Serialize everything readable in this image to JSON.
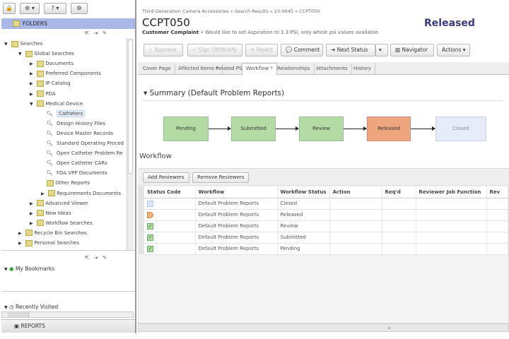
{
  "left": {
    "toolbar": [
      {
        "icon": "lock-icon",
        "label": "🔒"
      },
      {
        "icon": "gear-icon",
        "label": "⚙ ▾"
      },
      {
        "icon": "help-icon",
        "label": "? ▾"
      },
      {
        "icon": "settings-icon",
        "label": "⚙"
      }
    ],
    "folders_label": "FOLDERS",
    "tree": [
      {
        "label": "Searches",
        "level": 0,
        "type": "folder",
        "expanded": true
      },
      {
        "label": "Global Searches",
        "level": 1,
        "type": "folder",
        "expanded": true
      },
      {
        "label": "Documents",
        "level": 2,
        "type": "folder",
        "expanded": false
      },
      {
        "label": "Preferred Components",
        "level": 2,
        "type": "folder",
        "expanded": false
      },
      {
        "label": "IP Catalog",
        "level": 2,
        "type": "folder",
        "expanded": false
      },
      {
        "label": "PDA",
        "level": 2,
        "type": "folder",
        "expanded": false
      },
      {
        "label": "Medical Device",
        "level": 2,
        "type": "folder",
        "expanded": true
      },
      {
        "label": "Catheters",
        "level": 3,
        "type": "search",
        "selected": true
      },
      {
        "label": "Design History Files",
        "level": 3,
        "type": "search"
      },
      {
        "label": "Device Master Records",
        "level": 3,
        "type": "search"
      },
      {
        "label": "Standard Operating Proced",
        "level": 3,
        "type": "search"
      },
      {
        "label": "Open Catheter Problem Re",
        "level": 3,
        "type": "search"
      },
      {
        "label": "Open Catheter CARs",
        "level": 3,
        "type": "search"
      },
      {
        "label": "FDA VPP Documents",
        "level": 3,
        "type": "search"
      },
      {
        "label": "Other Reports",
        "level": 3,
        "type": "folder-leaf"
      },
      {
        "label": "Requirements Documents",
        "level": 3,
        "type": "folder",
        "expanded": false
      },
      {
        "label": "Advanced Viewer",
        "level": 2,
        "type": "folder",
        "expanded": false
      },
      {
        "label": "New Ideas",
        "level": 2,
        "type": "folder",
        "expanded": false
      },
      {
        "label": "Workflow Searches",
        "level": 2,
        "type": "folder",
        "expanded": false
      },
      {
        "label": "Recycle Bin Searches",
        "level": 1,
        "type": "folder",
        "expanded": false
      },
      {
        "label": "Personal Searches",
        "level": 1,
        "type": "folder",
        "expanded": false
      }
    ],
    "bookmarks_label": "My Bookmarks",
    "recent_label": "Recently Visited",
    "reports_label": "REPORTS"
  },
  "main": {
    "breadcrumb": "Third Generation Camera Accessories » Search Results » 23-0645 » CCPT050",
    "title": "CCPT050",
    "type_label": "Customer Complaint",
    "description": " • Would like to set Aspiration to 1.3 PSI, only whole psi values available.",
    "status": "Released",
    "status_color": "#3b3a7a",
    "buttons": {
      "approve": "✓ Approve",
      "sign": "✓ Sign Off/Notify",
      "reject": "✕ Reject",
      "comment": "💬 Comment",
      "next_status": "➜ Next Status",
      "next_status_menu": "▾",
      "navigator": "Navigator",
      "actions": "Actions ▾"
    },
    "tabs": [
      {
        "label": "Cover Page"
      },
      {
        "label": "Affected Items *"
      },
      {
        "label": "Related PSR"
      },
      {
        "label": "Workflow *",
        "active": true
      },
      {
        "label": "Relationships"
      },
      {
        "label": "Attachments"
      },
      {
        "label": "History"
      }
    ],
    "summary_title": "▾ Summary  (Default Problem Reports)",
    "workflow_nodes": [
      {
        "label": "Pending",
        "state": "complete",
        "color": "#b5dba4"
      },
      {
        "label": "Submitted",
        "state": "complete",
        "color": "#b5dba4"
      },
      {
        "label": "Review",
        "state": "complete",
        "color": "#b5dba4"
      },
      {
        "label": "Released",
        "state": "current",
        "color": "#eda67d"
      },
      {
        "label": "Closed",
        "state": "future",
        "color": "#e6ecf9"
      }
    ],
    "workflow_heading": "Workflow",
    "add_reviewers": "Add Reviewers",
    "remove_reviewers": "Remove Reviewers",
    "table": {
      "columns": [
        "Status Code",
        "Workflow",
        "Workflow Status",
        "Action",
        "Req'd",
        "Reviewer Job Function",
        "Rev"
      ],
      "rows": [
        {
          "status_icon": "future",
          "workflow": "Default Problem Reports",
          "status": "Closed"
        },
        {
          "status_icon": "current",
          "workflow": "Default Problem Reports",
          "status": "Released"
        },
        {
          "status_icon": "complete",
          "workflow": "Default Problem Reports",
          "status": "Review"
        },
        {
          "status_icon": "complete",
          "workflow": "Default Problem Reports",
          "status": "Submitted"
        },
        {
          "status_icon": "complete",
          "workflow": "Default Problem Reports",
          "status": "Pending"
        }
      ]
    }
  }
}
